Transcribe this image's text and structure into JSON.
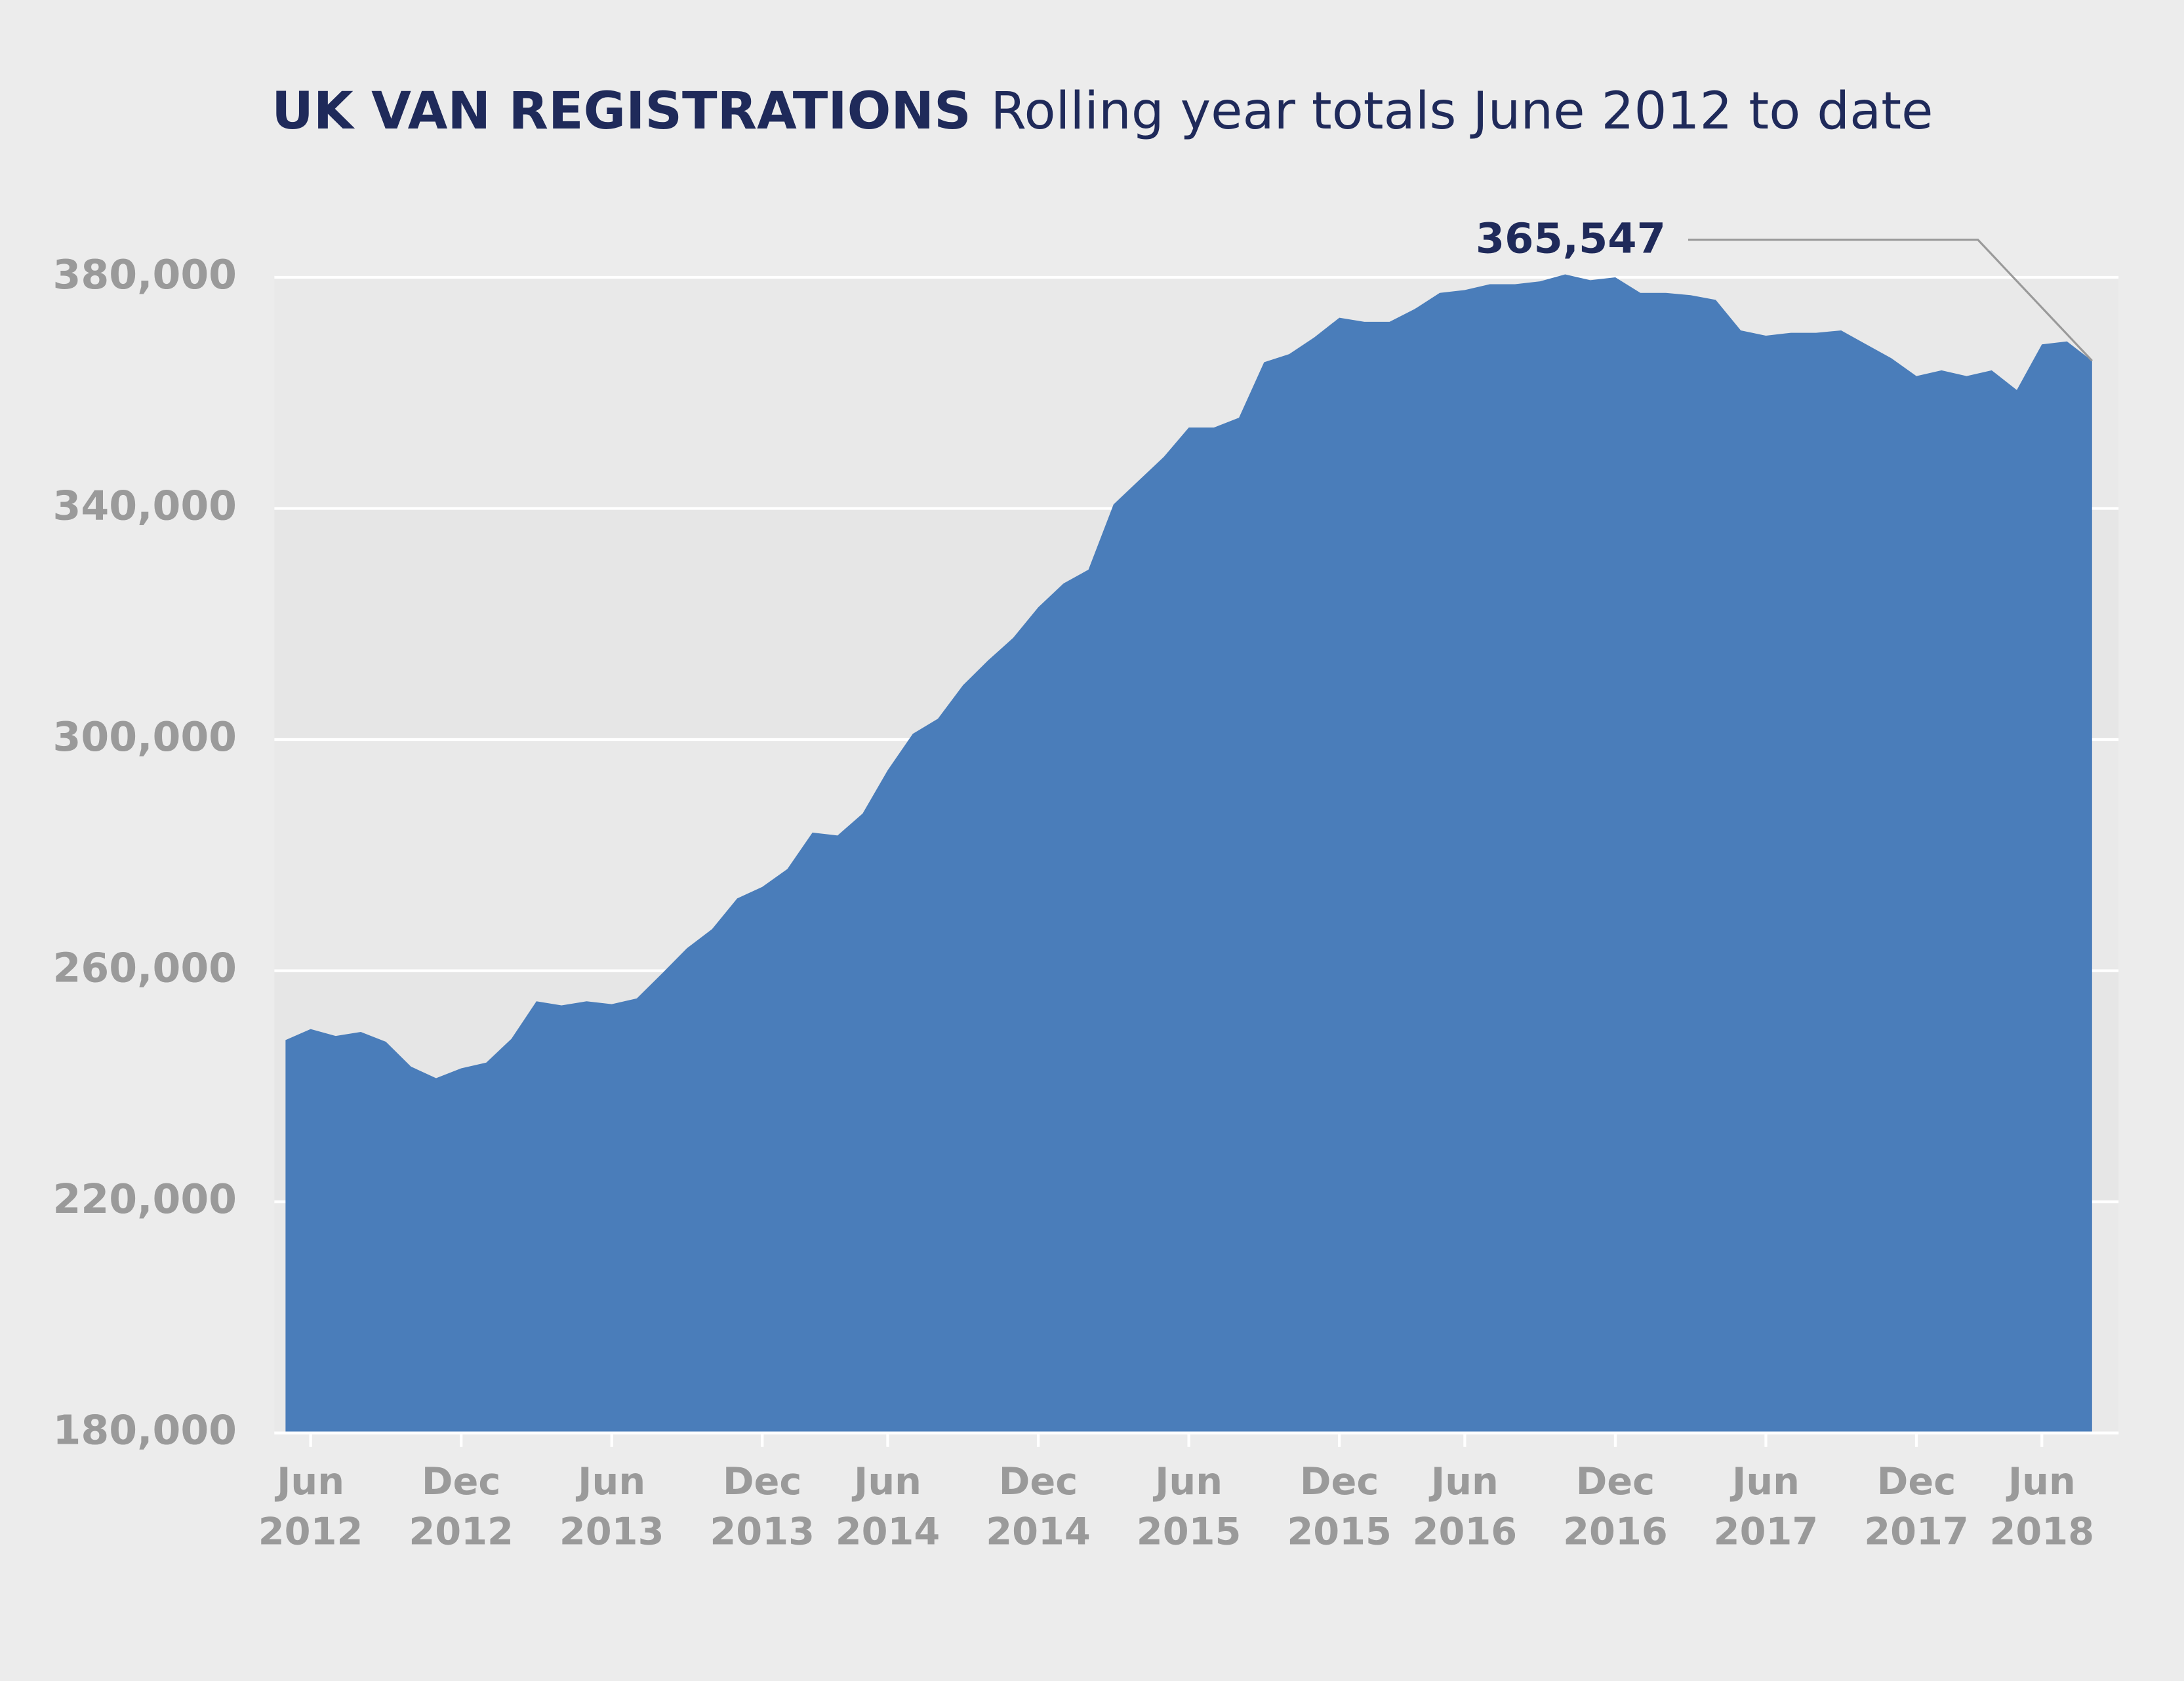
{
  "chart_data": {
    "type": "area",
    "title": "UK VAN REGISTRATIONS",
    "subtitle": "Rolling year totals June 2012 to date",
    "annotation": "365,547",
    "color": "#4a7dba",
    "categories": [
      null,
      "Jun 2012",
      null,
      null,
      null,
      null,
      null,
      "Dec 2012",
      null,
      null,
      null,
      null,
      null,
      "Jun 2013",
      null,
      null,
      null,
      null,
      null,
      "Dec 2013",
      null,
      null,
      null,
      null,
      "Jun 2014",
      null,
      null,
      null,
      null,
      null,
      "Dec 2014",
      null,
      null,
      null,
      null,
      null,
      "Jun 2015",
      null,
      null,
      null,
      null,
      null,
      "Dec 2015",
      null,
      null,
      null,
      null,
      "Jun 2016",
      null,
      null,
      null,
      null,
      null,
      "Dec 2016",
      null,
      null,
      null,
      null,
      null,
      "Jun 2017",
      null,
      null,
      null,
      null,
      null,
      "Dec 2017",
      null,
      null,
      null,
      null,
      "Jun 2018",
      null,
      null
    ],
    "values": [
      248000,
      249900,
      248700,
      249400,
      247700,
      243400,
      241400,
      243100,
      244100,
      248200,
      254700,
      254000,
      254700,
      254200,
      255200,
      259500,
      263900,
      267200,
      272500,
      274500,
      277600,
      283900,
      283400,
      287200,
      294700,
      301000,
      303600,
      309400,
      313700,
      317600,
      322900,
      327000,
      329400,
      340700,
      344800,
      348900,
      354000,
      354000,
      355700,
      365300,
      366700,
      369600,
      373000,
      372300,
      372300,
      374500,
      377300,
      377800,
      378800,
      378800,
      379300,
      380500,
      379500,
      380000,
      377300,
      377300,
      376900,
      376100,
      370800,
      369900,
      370400,
      370400,
      370800,
      368400,
      366000,
      362900,
      363900,
      362900,
      363900,
      360500,
      368400,
      368900,
      365547
    ],
    "ylim": [
      180000,
      380000
    ],
    "yticks": [
      {
        "value": 180000,
        "label": "180,000"
      },
      {
        "value": 220000,
        "label": "220,000"
      },
      {
        "value": 260000,
        "label": "260,000"
      },
      {
        "value": 300000,
        "label": "300,000"
      },
      {
        "value": 340000,
        "label": "340,000"
      },
      {
        "value": 380000,
        "label": "380,000"
      }
    ],
    "grid": true
  }
}
